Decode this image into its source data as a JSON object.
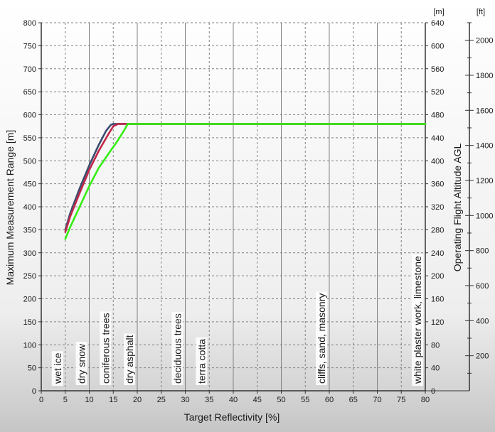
{
  "chart_data": {
    "type": "line",
    "xlabel": "Target Reflectivity [%]",
    "ylabel": "Maximum Measurement Range [m]",
    "y2label": "Operating Flight Altitude AGL",
    "y2unit": "[m]",
    "y3unit": "[ft]",
    "xlim": [
      0,
      80
    ],
    "ylim": [
      0,
      800
    ],
    "y2lim": [
      0,
      640
    ],
    "xticks": [
      0,
      5,
      10,
      15,
      20,
      25,
      30,
      35,
      40,
      45,
      50,
      55,
      60,
      65,
      70,
      75,
      80
    ],
    "yticks": [
      0,
      50,
      100,
      150,
      200,
      250,
      300,
      350,
      400,
      450,
      500,
      550,
      600,
      650,
      700,
      750,
      800
    ],
    "y2ticks": [
      0,
      40,
      80,
      120,
      160,
      200,
      240,
      280,
      320,
      360,
      400,
      440,
      480,
      520,
      560,
      600,
      640
    ],
    "y3ticks": [
      200,
      400,
      600,
      800,
      1000,
      1200,
      1400,
      1600,
      1800,
      2000
    ],
    "grid": true,
    "series": [
      {
        "color": "#3a4b6e",
        "x": [
          5,
          6,
          8,
          10,
          12,
          13.5,
          14.5,
          15,
          80
        ],
        "y": [
          350,
          385,
          440,
          490,
          535,
          565,
          578,
          580,
          580
        ]
      },
      {
        "color": "#c0284a",
        "x": [
          5,
          6,
          8,
          10,
          12,
          14,
          15,
          16,
          80
        ],
        "y": [
          345,
          378,
          430,
          480,
          522,
          558,
          575,
          580,
          580
        ]
      },
      {
        "color": "#33ee11",
        "x": [
          5,
          6,
          8,
          10,
          12,
          14,
          16,
          17.5,
          18,
          80
        ],
        "y": [
          330,
          355,
          400,
          445,
          485,
          515,
          545,
          570,
          580,
          580
        ]
      }
    ],
    "annotations": [
      {
        "label": "wet ice",
        "x": 5
      },
      {
        "label": "dry snow",
        "x": 10
      },
      {
        "label": "coniferous trees",
        "x": 15
      },
      {
        "label": "dry asphalt",
        "x": 20
      },
      {
        "label": "deciduous trees",
        "x": 30
      },
      {
        "label": "terra cotta",
        "x": 35
      },
      {
        "label": "cliffs, sand, masonry",
        "x": 60
      },
      {
        "label": "white plaster work, limestone",
        "x": 80
      }
    ],
    "colors": {
      "background_top": "#ffffff",
      "background_bottom": "#c8c8c8",
      "grid": "#808080",
      "axis": "#333333"
    }
  }
}
